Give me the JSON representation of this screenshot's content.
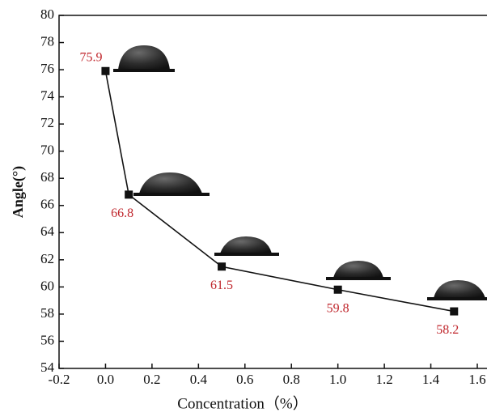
{
  "chart_data": {
    "type": "line",
    "x": [
      0,
      0.1,
      0.5,
      1.0,
      1.5
    ],
    "values": [
      75.9,
      66.8,
      61.5,
      59.8,
      58.2
    ],
    "color": "#111111",
    "label_color": "#c0272d",
    "xlabel": "Concentration（%）",
    "ylabel": "Angle(°)",
    "xlim": [
      -0.2,
      1.6
    ],
    "ylim": [
      54,
      80
    ],
    "xticks": [
      -0.2,
      {
        "value": 0,
        "label": "0.0"
      },
      0.2,
      0.4,
      0.6,
      0.8,
      {
        "value": 1,
        "label": "1.0"
      },
      1.2,
      1.4,
      1.6
    ],
    "yticks": [
      54,
      56,
      58,
      60,
      62,
      64,
      66,
      68,
      70,
      72,
      74,
      76,
      78,
      80
    ]
  }
}
